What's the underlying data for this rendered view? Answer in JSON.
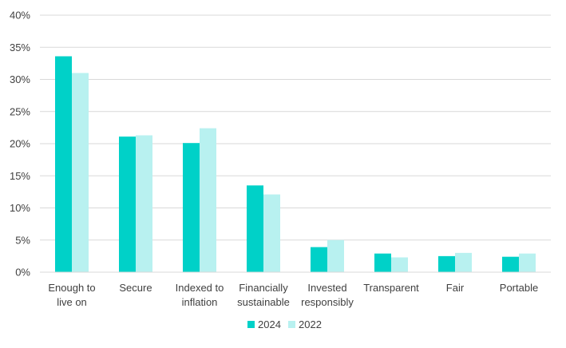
{
  "chart_data": {
    "type": "bar",
    "categories": [
      [
        "Enough to",
        "live on"
      ],
      [
        "Secure"
      ],
      [
        "Indexed to",
        "inflation"
      ],
      [
        "Financially",
        "sustainable"
      ],
      [
        "Invested",
        "responsibly"
      ],
      [
        "Transparent"
      ],
      [
        "Fair"
      ],
      [
        "Portable"
      ]
    ],
    "series": [
      {
        "name": "2024",
        "color": "#00d1c8",
        "values": [
          33.6,
          21.1,
          20.1,
          13.5,
          3.9,
          2.9,
          2.5,
          2.4
        ]
      },
      {
        "name": "2022",
        "color": "#b8f1f0",
        "values": [
          31.0,
          21.3,
          22.4,
          12.1,
          5.0,
          2.3,
          3.0,
          2.9
        ]
      }
    ],
    "yticks": [
      "0%",
      "5%",
      "10%",
      "15%",
      "20%",
      "25%",
      "30%",
      "35%",
      "40%"
    ],
    "ylim": [
      0,
      40
    ],
    "grid": true,
    "legend_position": "bottom"
  }
}
